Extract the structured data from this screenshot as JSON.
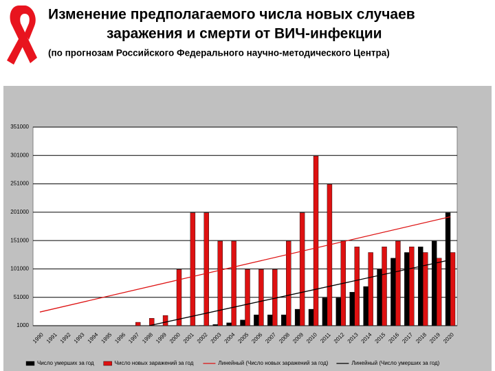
{
  "chart_data": {
    "type": "bar",
    "title_lines": [
      "Изменение предполагаемого числа новых случаев",
      "заражения и смерти от ВИЧ-инфекции"
    ],
    "subtitle": "(по прогнозам Российского Федерального научно-методического Центра)",
    "categories": [
      "1990",
      "1991",
      "1992",
      "1993",
      "1994",
      "1995",
      "1996",
      "1997",
      "1998",
      "1999",
      "2000",
      "2001",
      "2002",
      "2003",
      "2004",
      "2005",
      "2006",
      "2007",
      "2008",
      "2009",
      "2010",
      "2011",
      "2012",
      "2013",
      "2014",
      "2015",
      "2016",
      "2017",
      "2018",
      "2019",
      "2020"
    ],
    "series": [
      {
        "name": "Число умерших за год",
        "color": "#000000",
        "values": [
          null,
          null,
          null,
          null,
          null,
          null,
          null,
          null,
          null,
          null,
          null,
          null,
          1500,
          3000,
          6000,
          11000,
          20000,
          20000,
          20000,
          30000,
          30000,
          50000,
          50000,
          60000,
          70000,
          100000,
          120000,
          130000,
          140000,
          150000,
          200000
        ]
      },
      {
        "name": "Число новых заражений за год",
        "color": "#dd1111",
        "values": [
          null,
          null,
          null,
          null,
          null,
          null,
          null,
          7000,
          14000,
          19000,
          100000,
          200000,
          200000,
          150000,
          150000,
          100000,
          100000,
          100000,
          150000,
          200000,
          300000,
          250000,
          150000,
          140000,
          130000,
          140000,
          150000,
          140000,
          130000,
          120000,
          130000
        ]
      }
    ],
    "trendlines": [
      {
        "name": "Линейный (Число новых заражений за год)",
        "color": "#dd1111",
        "x": [
          "1990",
          "2020"
        ],
        "values": [
          25000,
          193000
        ]
      },
      {
        "name": "Линейный (Число умерших за год)",
        "color": "#000000",
        "x": [
          "1998",
          "2020"
        ],
        "values": [
          1000,
          117000
        ]
      }
    ],
    "ylim": [
      1000,
      351000
    ],
    "yticks": [
      1000,
      51000,
      101000,
      151000,
      201000,
      251000,
      301000,
      351000
    ],
    "grid": true
  }
}
